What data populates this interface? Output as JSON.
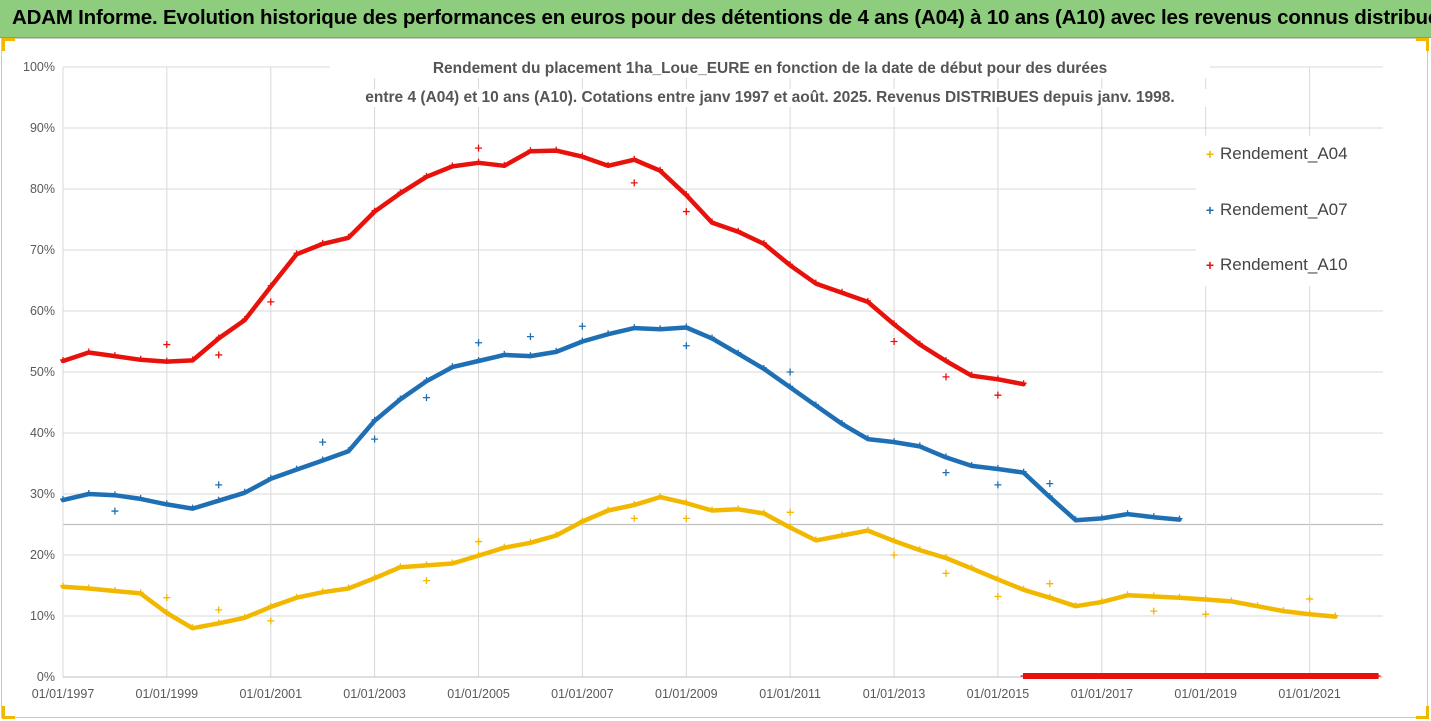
{
  "banner": {
    "title": "ADAM Informe. Evolution historique des performances en euros pour des détentions de 4 ans (A04) à 10 ans (A10) avec les revenus connus distribués",
    "color": "#8fcd7e"
  },
  "chart_data": {
    "type": "scatter",
    "title_line1": "Rendement du placement 1ha_Loue_EURE en fonction de la date de début pour des durées",
    "title_line2": "entre 4 (A04) et 10 ans (A10). Cotations entre janv 1997 et août. 2025. Revenus DISTRIBUES depuis janv. 1998.",
    "xlabel": "",
    "ylabel": "",
    "ylim": [
      0,
      100
    ],
    "xlim": [
      "1997-01-01",
      "2022-06-01"
    ],
    "y_ticks": [
      "0%",
      "10%",
      "20%",
      "30%",
      "40%",
      "50%",
      "60%",
      "70%",
      "80%",
      "90%",
      "100%"
    ],
    "x_ticks": [
      "01/01/1997",
      "01/01/1999",
      "01/01/2001",
      "01/01/2003",
      "01/01/2005",
      "01/01/2007",
      "01/01/2009",
      "01/01/2011",
      "01/01/2013",
      "01/01/2015",
      "01/01/2017",
      "01/01/2019",
      "01/01/2021"
    ],
    "grid": true,
    "legend_position": "right",
    "series": [
      {
        "name": "Rendement_A04",
        "color": "#f2b800",
        "marker": "+",
        "points": [
          [
            "1997-01-01",
            14.8
          ],
          [
            "1997-07-01",
            14.5
          ],
          [
            "1998-01-01",
            14.1
          ],
          [
            "1998-07-01",
            13.7
          ],
          [
            "1999-01-01",
            10.5
          ],
          [
            "1999-07-01",
            8.0
          ],
          [
            "2000-01-01",
            8.8
          ],
          [
            "2000-07-01",
            9.7
          ],
          [
            "2001-01-01",
            11.5
          ],
          [
            "2001-07-01",
            13.0
          ],
          [
            "2002-01-01",
            13.9
          ],
          [
            "2002-07-01",
            14.5
          ],
          [
            "2003-01-01",
            16.2
          ],
          [
            "2003-07-01",
            18.0
          ],
          [
            "2004-01-01",
            18.3
          ],
          [
            "2004-07-01",
            18.6
          ],
          [
            "2005-01-01",
            19.9
          ],
          [
            "2005-07-01",
            21.2
          ],
          [
            "2006-01-01",
            22.0
          ],
          [
            "2006-07-01",
            23.2
          ],
          [
            "2007-01-01",
            25.5
          ],
          [
            "2007-07-01",
            27.3
          ],
          [
            "2008-01-01",
            28.2
          ],
          [
            "2008-07-01",
            29.5
          ],
          [
            "2009-01-01",
            28.5
          ],
          [
            "2009-07-01",
            27.3
          ],
          [
            "2010-01-01",
            27.5
          ],
          [
            "2010-07-01",
            26.8
          ],
          [
            "2011-01-01",
            24.5
          ],
          [
            "2011-07-01",
            22.4
          ],
          [
            "2012-01-01",
            23.2
          ],
          [
            "2012-07-01",
            24.0
          ],
          [
            "2013-01-01",
            22.3
          ],
          [
            "2013-07-01",
            20.8
          ],
          [
            "2014-01-01",
            19.5
          ],
          [
            "2014-07-01",
            17.8
          ],
          [
            "2015-01-01",
            16.0
          ],
          [
            "2015-07-01",
            14.3
          ],
          [
            "2016-01-01",
            13.0
          ],
          [
            "2016-07-01",
            11.6
          ],
          [
            "2017-01-01",
            12.3
          ],
          [
            "2017-07-01",
            13.4
          ],
          [
            "2018-01-01",
            13.2
          ],
          [
            "2018-07-01",
            13.0
          ],
          [
            "2019-01-01",
            12.7
          ],
          [
            "2019-07-01",
            12.4
          ],
          [
            "2020-01-01",
            11.6
          ],
          [
            "2020-07-01",
            10.8
          ],
          [
            "2021-01-01",
            10.3
          ],
          [
            "2021-07-01",
            9.9
          ]
        ],
        "outliers": [
          [
            "1999-01-01",
            13.0
          ],
          [
            "2000-01-01",
            11.0
          ],
          [
            "2001-01-01",
            9.2
          ],
          [
            "2004-01-01",
            15.8
          ],
          [
            "2005-01-01",
            22.2
          ],
          [
            "2008-01-01",
            26.0
          ],
          [
            "2009-01-01",
            26.0
          ],
          [
            "2011-01-01",
            27.0
          ],
          [
            "2013-01-01",
            20.0
          ],
          [
            "2014-01-01",
            17.0
          ],
          [
            "2015-01-01",
            13.2
          ],
          [
            "2016-01-01",
            15.3
          ],
          [
            "2018-01-01",
            10.8
          ],
          [
            "2019-01-01",
            10.3
          ],
          [
            "2021-01-01",
            12.8
          ]
        ]
      },
      {
        "name": "Rendement_A07",
        "color": "#1f6fb5",
        "marker": "+",
        "points": [
          [
            "1997-01-01",
            29.0
          ],
          [
            "1997-07-01",
            30.0
          ],
          [
            "1998-01-01",
            29.8
          ],
          [
            "1998-07-01",
            29.2
          ],
          [
            "1999-01-01",
            28.3
          ],
          [
            "1999-07-01",
            27.6
          ],
          [
            "2000-01-01",
            28.9
          ],
          [
            "2000-07-01",
            30.2
          ],
          [
            "2001-01-01",
            32.5
          ],
          [
            "2001-07-01",
            34.0
          ],
          [
            "2002-01-01",
            35.5
          ],
          [
            "2002-07-01",
            37.0
          ],
          [
            "2003-01-01",
            42.0
          ],
          [
            "2003-07-01",
            45.5
          ],
          [
            "2004-01-01",
            48.5
          ],
          [
            "2004-07-01",
            50.8
          ],
          [
            "2005-01-01",
            51.8
          ],
          [
            "2005-07-01",
            52.8
          ],
          [
            "2006-01-01",
            52.6
          ],
          [
            "2006-07-01",
            53.3
          ],
          [
            "2007-01-01",
            55.0
          ],
          [
            "2007-07-01",
            56.2
          ],
          [
            "2008-01-01",
            57.2
          ],
          [
            "2008-07-01",
            57.0
          ],
          [
            "2009-01-01",
            57.3
          ],
          [
            "2009-07-01",
            55.5
          ],
          [
            "2010-01-01",
            53.0
          ],
          [
            "2010-07-01",
            50.5
          ],
          [
            "2011-01-01",
            47.5
          ],
          [
            "2011-07-01",
            44.5
          ],
          [
            "2012-01-01",
            41.5
          ],
          [
            "2012-07-01",
            39.0
          ],
          [
            "2013-01-01",
            38.5
          ],
          [
            "2013-07-01",
            37.8
          ],
          [
            "2014-01-01",
            36.0
          ],
          [
            "2014-07-01",
            34.6
          ],
          [
            "2015-01-01",
            34.1
          ],
          [
            "2015-07-01",
            33.5
          ],
          [
            "2016-01-01",
            29.5
          ],
          [
            "2016-07-01",
            25.7
          ],
          [
            "2017-01-01",
            26.0
          ],
          [
            "2017-07-01",
            26.7
          ],
          [
            "2018-01-01",
            26.2
          ],
          [
            "2018-07-01",
            25.8
          ]
        ],
        "outliers": [
          [
            "1998-01-01",
            27.2
          ],
          [
            "2000-01-01",
            31.5
          ],
          [
            "2002-01-01",
            38.5
          ],
          [
            "2003-01-01",
            39.0
          ],
          [
            "2004-01-01",
            45.8
          ],
          [
            "2005-01-01",
            54.8
          ],
          [
            "2006-01-01",
            55.8
          ],
          [
            "2007-01-01",
            57.5
          ],
          [
            "2009-01-01",
            54.3
          ],
          [
            "2011-01-01",
            50.0
          ],
          [
            "2014-01-01",
            33.5
          ],
          [
            "2015-01-01",
            31.5
          ],
          [
            "2016-01-01",
            31.7
          ]
        ]
      },
      {
        "name": "Rendement_A10",
        "color": "#e8120c",
        "marker": "+",
        "points": [
          [
            "1997-01-01",
            51.8
          ],
          [
            "1997-07-01",
            53.2
          ],
          [
            "1998-01-01",
            52.6
          ],
          [
            "1998-07-01",
            52.0
          ],
          [
            "1999-01-01",
            51.7
          ],
          [
            "1999-07-01",
            51.9
          ],
          [
            "2000-01-01",
            55.5
          ],
          [
            "2000-07-01",
            58.5
          ],
          [
            "2001-01-01",
            64.0
          ],
          [
            "2001-07-01",
            69.3
          ],
          [
            "2002-01-01",
            71.0
          ],
          [
            "2002-07-01",
            72.0
          ],
          [
            "2003-01-01",
            76.3
          ],
          [
            "2003-07-01",
            79.3
          ],
          [
            "2004-01-01",
            82.0
          ],
          [
            "2004-07-01",
            83.7
          ],
          [
            "2005-01-01",
            84.3
          ],
          [
            "2005-07-01",
            83.8
          ],
          [
            "2006-01-01",
            86.2
          ],
          [
            "2006-07-01",
            86.3
          ],
          [
            "2007-01-01",
            85.3
          ],
          [
            "2007-07-01",
            83.8
          ],
          [
            "2008-01-01",
            84.8
          ],
          [
            "2008-07-01",
            83.0
          ],
          [
            "2009-01-01",
            79.0
          ],
          [
            "2009-07-01",
            74.5
          ],
          [
            "2010-01-01",
            73.0
          ],
          [
            "2010-07-01",
            71.0
          ],
          [
            "2011-01-01",
            67.5
          ],
          [
            "2011-07-01",
            64.5
          ],
          [
            "2012-01-01",
            63.0
          ],
          [
            "2012-07-01",
            61.5
          ],
          [
            "2013-01-01",
            57.8
          ],
          [
            "2013-07-01",
            54.5
          ],
          [
            "2014-01-01",
            51.8
          ],
          [
            "2014-07-01",
            49.4
          ],
          [
            "2015-01-01",
            48.8
          ],
          [
            "2015-07-01",
            48.0
          ]
        ],
        "outliers": [
          [
            "1999-01-01",
            54.5
          ],
          [
            "2000-01-01",
            52.8
          ],
          [
            "2001-01-01",
            61.5
          ],
          [
            "2005-01-01",
            86.7
          ],
          [
            "2008-01-01",
            81.0
          ],
          [
            "2009-01-01",
            76.3
          ],
          [
            "2013-01-01",
            55.0
          ],
          [
            "2014-01-01",
            49.2
          ],
          [
            "2015-01-01",
            46.2
          ]
        ],
        "zero_segment": [
          "2015-07-01",
          "2022-05-01"
        ]
      }
    ]
  }
}
